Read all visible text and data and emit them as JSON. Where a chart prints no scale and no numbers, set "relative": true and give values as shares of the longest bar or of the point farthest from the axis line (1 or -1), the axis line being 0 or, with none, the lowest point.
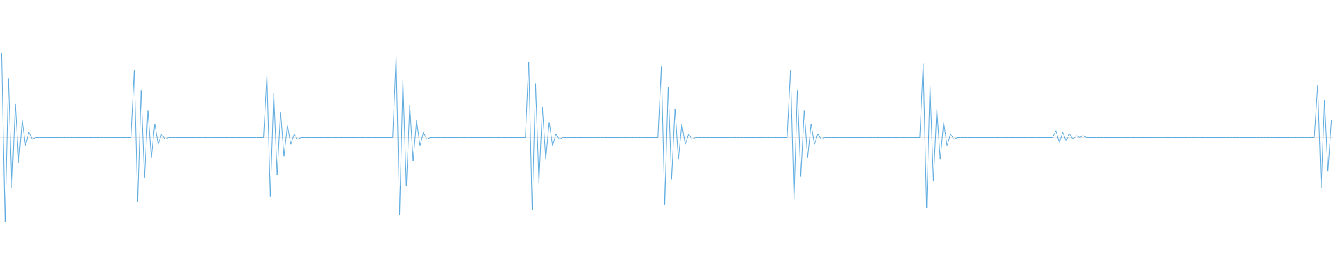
{
  "chart_data": {
    "type": "line",
    "relative": true,
    "categories": [
      null,
      null,
      null,
      null,
      null,
      null,
      null,
      null,
      null,
      null,
      null,
      null,
      null,
      null,
      null,
      null,
      null,
      null,
      null,
      null,
      null,
      null,
      null,
      null,
      null,
      null,
      null,
      null,
      null,
      null,
      null,
      null,
      null,
      null,
      null,
      null,
      null,
      null,
      null,
      null,
      null,
      null,
      null,
      null,
      null,
      null,
      null,
      null,
      null,
      null,
      null,
      null,
      null,
      null,
      null,
      null,
      null,
      null,
      null,
      null,
      null,
      null,
      null,
      null,
      null,
      null,
      null,
      null,
      null,
      null,
      null,
      null,
      null,
      null,
      null,
      null,
      null,
      null,
      null,
      null,
      null,
      null,
      null,
      null,
      null,
      null,
      null,
      null,
      null,
      null,
      null,
      null,
      null,
      null,
      null,
      null,
      null,
      null,
      null,
      null,
      null,
      null,
      null,
      null,
      null,
      null,
      null,
      null,
      null,
      null,
      null,
      null,
      null,
      null,
      null,
      null,
      null,
      null,
      null,
      null,
      null,
      null,
      null,
      null,
      null,
      null,
      null,
      null,
      null,
      null,
      null,
      null,
      null,
      null,
      null,
      null,
      null,
      null,
      null,
      null,
      null,
      null,
      null,
      null,
      null,
      null,
      null,
      null,
      null,
      null,
      null,
      null,
      null,
      null,
      null,
      null,
      null,
      null,
      null,
      null,
      null,
      null,
      null,
      null,
      null,
      null,
      null,
      null,
      null,
      null,
      null,
      null,
      null,
      null,
      null,
      null,
      null,
      null,
      null,
      null,
      null,
      null,
      null,
      null,
      null,
      null,
      null,
      null,
      null,
      null,
      null,
      null,
      null,
      null,
      null,
      null,
      null,
      null,
      null,
      null,
      null,
      null,
      null,
      null,
      null,
      null,
      null,
      null,
      null,
      null,
      null,
      null,
      null,
      null,
      null,
      null,
      null,
      null,
      null,
      null,
      null,
      null,
      null,
      null,
      null,
      null,
      null,
      null,
      null,
      null,
      null,
      null,
      null,
      null,
      null,
      null,
      null,
      null,
      null,
      null,
      null,
      null,
      null,
      null,
      null,
      null,
      null,
      null,
      null,
      null,
      null,
      null,
      null,
      null,
      null,
      null,
      null,
      null,
      null,
      null,
      null,
      null,
      null,
      null,
      null,
      null,
      null,
      null,
      null,
      null,
      null,
      null,
      null,
      null,
      null,
      null,
      null,
      null,
      null,
      null,
      null,
      null,
      null,
      null,
      null,
      null,
      null,
      null,
      null,
      null,
      null,
      null,
      null,
      null,
      null,
      null,
      null,
      null,
      null,
      null,
      null,
      null,
      null,
      null,
      null,
      null,
      null,
      null,
      null,
      null,
      null,
      null,
      null,
      null,
      null,
      null,
      null,
      null,
      null,
      null,
      null,
      null,
      null,
      null,
      null,
      null,
      null,
      null,
      null,
      null,
      null,
      null,
      null,
      null,
      null,
      null,
      null,
      null,
      null,
      null,
      null,
      null,
      null,
      null,
      null,
      null,
      null,
      null,
      null,
      null,
      null,
      null,
      null,
      null,
      null,
      null,
      null,
      null,
      null,
      null,
      null,
      null,
      null,
      null,
      null,
      null,
      null,
      null,
      null,
      null,
      null,
      null,
      null,
      null,
      null,
      null,
      null,
      null,
      null,
      null,
      null,
      null,
      null,
      null,
      null,
      null,
      null,
      null,
      null,
      null,
      null,
      null
    ],
    "series": [
      {
        "color": "#5aaae0",
        "values": [
          1,
          -1,
          0.7,
          -0.6,
          0.4,
          -0.3,
          0.2,
          -0.1,
          0.06,
          -0.02,
          0,
          0,
          0,
          0,
          0,
          0,
          0,
          0,
          0,
          0,
          0,
          0,
          0,
          0,
          0,
          0,
          0,
          0,
          0,
          0,
          0,
          0,
          0,
          0,
          0,
          0,
          0,
          0,
          0,
          0.8,
          -0.76,
          0.56,
          -0.48,
          0.32,
          -0.24,
          0.16,
          -0.08,
          0.04,
          -0.02,
          0,
          0,
          0,
          0,
          0,
          0,
          0,
          0,
          0,
          0,
          0,
          0,
          0,
          0,
          0,
          0,
          0,
          0,
          0,
          0,
          0,
          0,
          0,
          0,
          0,
          0,
          0,
          0,
          0,
          0.74,
          -0.7,
          0.52,
          -0.44,
          0.3,
          -0.22,
          0.14,
          -0.08,
          0.04,
          -0.02,
          0,
          0,
          0,
          0,
          0,
          0,
          0,
          0,
          0,
          0,
          0,
          0,
          0,
          0,
          0,
          0,
          0,
          0,
          0,
          0,
          0,
          0,
          0,
          0,
          0,
          0,
          0,
          0,
          0.96,
          -0.92,
          0.68,
          -0.58,
          0.38,
          -0.28,
          0.2,
          -0.1,
          0.06,
          -0.02,
          0,
          0,
          0,
          0,
          0,
          0,
          0,
          0,
          0,
          0,
          0,
          0,
          0,
          0,
          0,
          0,
          0,
          0,
          0,
          0,
          0,
          0,
          0,
          0,
          0,
          0,
          0,
          0,
          0,
          0.9,
          -0.86,
          0.64,
          -0.54,
          0.36,
          -0.26,
          0.18,
          -0.1,
          0.04,
          -0.02,
          0,
          0,
          0,
          0,
          0,
          0,
          0,
          0,
          0,
          0,
          0,
          0,
          0,
          0,
          0,
          0,
          0,
          0,
          0,
          0,
          0,
          0,
          0,
          0,
          0,
          0,
          0,
          0,
          0,
          0.84,
          -0.8,
          0.6,
          -0.5,
          0.34,
          -0.26,
          0.16,
          -0.08,
          0.04,
          -0.02,
          0,
          0,
          0,
          0,
          0,
          0,
          0,
          0,
          0,
          0,
          0,
          0,
          0,
          0,
          0,
          0,
          0,
          0,
          0,
          0,
          0,
          0,
          0,
          0,
          0,
          0,
          0,
          0,
          0.8,
          -0.74,
          0.56,
          -0.46,
          0.32,
          -0.24,
          0.16,
          -0.08,
          0.04,
          -0.02,
          0,
          0,
          0,
          0,
          0,
          0,
          0,
          0,
          0,
          0,
          0,
          0,
          0,
          0,
          0,
          0,
          0,
          0,
          0,
          0,
          0,
          0,
          0,
          0,
          0,
          0,
          0,
          0,
          0,
          0.88,
          -0.84,
          0.62,
          -0.52,
          0.34,
          -0.26,
          0.18,
          -0.1,
          0.04,
          -0.02,
          0,
          0,
          0,
          0,
          0,
          0,
          0,
          0,
          0,
          0,
          0,
          0,
          0,
          0,
          0,
          0,
          0,
          0,
          0,
          0,
          0,
          0,
          0,
          0,
          0,
          0,
          0,
          0,
          0,
          0.08,
          -0.06,
          0.06,
          -0.04,
          0.04,
          -0.02,
          0.02,
          0,
          0.02,
          0,
          0,
          0,
          0,
          0,
          0,
          0,
          0,
          0,
          0,
          0,
          0,
          0,
          0,
          0,
          0,
          0,
          0,
          0,
          0,
          0,
          0,
          0,
          0,
          0,
          0,
          0,
          0,
          0,
          0,
          0,
          0,
          0,
          0,
          0,
          0,
          0,
          0,
          0,
          0,
          0,
          0,
          0,
          0,
          0,
          0,
          0,
          0,
          0,
          0,
          0,
          0,
          0,
          0,
          0,
          0,
          0,
          0,
          0,
          0,
          0,
          0,
          0,
          0,
          0,
          0,
          0,
          0,
          0.62,
          -0.6,
          0.44,
          -0.4,
          0.2
        ]
      }
    ]
  }
}
